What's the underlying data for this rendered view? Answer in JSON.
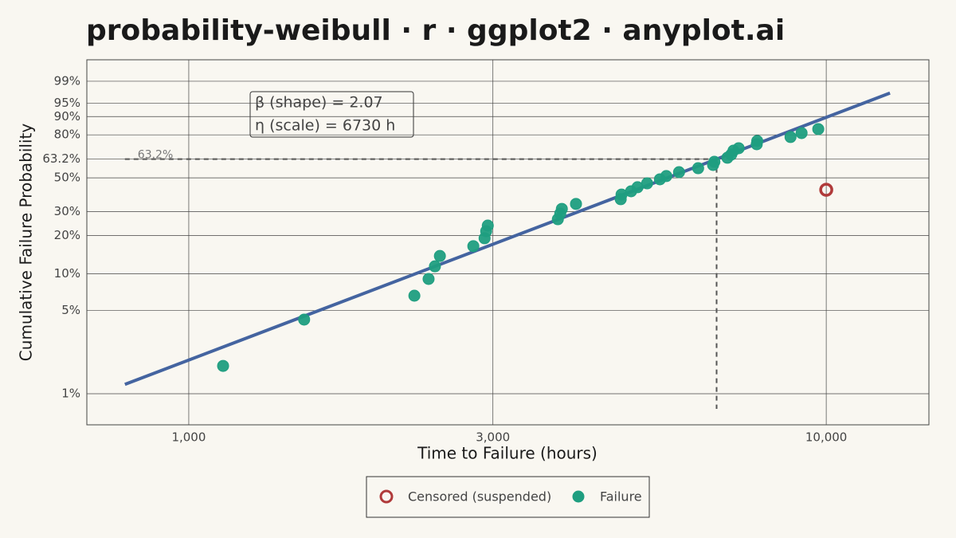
{
  "chart_data": {
    "type": "scatter",
    "title": "probability-weibull · r · ggplot2 · anyplot.ai",
    "x_label": "Time to Failure (hours)",
    "y_label": "Cumulative Failure Probability",
    "x_scale": "log",
    "y_scale": "weibull",
    "xlim": [
      692,
      14490
    ],
    "ylim": [
      0.545,
      99.91
    ],
    "xticks": [
      {
        "value": 1000,
        "label": "1,000"
      },
      {
        "value": 3000,
        "label": "3,000"
      },
      {
        "value": 10000,
        "label": "10,000"
      }
    ],
    "yticks": [
      {
        "value": 1,
        "label": "1%"
      },
      {
        "value": 5,
        "label": "5%"
      },
      {
        "value": 10,
        "label": "10%"
      },
      {
        "value": 20,
        "label": "20%"
      },
      {
        "value": 30,
        "label": "30%"
      },
      {
        "value": 50,
        "label": "50%"
      },
      {
        "value": 63.2,
        "label": "63.2%"
      },
      {
        "value": 80,
        "label": "80%"
      },
      {
        "value": 90,
        "label": "90%"
      },
      {
        "value": 95,
        "label": "95%"
      },
      {
        "value": 99,
        "label": "99%"
      }
    ],
    "grid": true,
    "annotations": [
      "β (shape) = 2.07",
      "η (scale) = 6730 h"
    ],
    "reference": {
      "label": "63.2%",
      "x": 6730,
      "y": 63.2
    },
    "fit": {
      "color": "#4464a0",
      "x": [
        794,
        12589
      ],
      "values": [
        1.2,
        97.4
      ]
    },
    "legend": "bottom",
    "series": [
      {
        "name": "Censored (suspended)",
        "color": "#b03a3a",
        "marker": "open",
        "x": [
          10000
        ],
        "values": [
          42.2
        ]
      },
      {
        "name": "Failure",
        "color": "#1f9e80",
        "marker": "filled",
        "x": [
          1132,
          1517,
          2259,
          2378,
          2433,
          2477,
          2795,
          2911,
          2928,
          2945,
          3793,
          3826,
          3848,
          4050,
          4760,
          4774,
          4942,
          5058,
          5236,
          5484,
          5612,
          5876,
          6296,
          6645,
          6676,
          6998,
          7095,
          7153,
          7288,
          7780,
          7794,
          8790,
          9148,
          9716
        ],
        "values": [
          1.72,
          4.21,
          6.64,
          9.1,
          11.5,
          13.9,
          16.6,
          19.1,
          21.6,
          23.8,
          26.5,
          29.1,
          31.4,
          34.0,
          36.6,
          39.3,
          41.3,
          43.8,
          46.3,
          49.0,
          51.2,
          53.9,
          56.7,
          59.0,
          61.3,
          64.2,
          66.5,
          69.3,
          71.0,
          73.8,
          76.0,
          78.6,
          81.1,
          83.5
        ]
      }
    ]
  }
}
